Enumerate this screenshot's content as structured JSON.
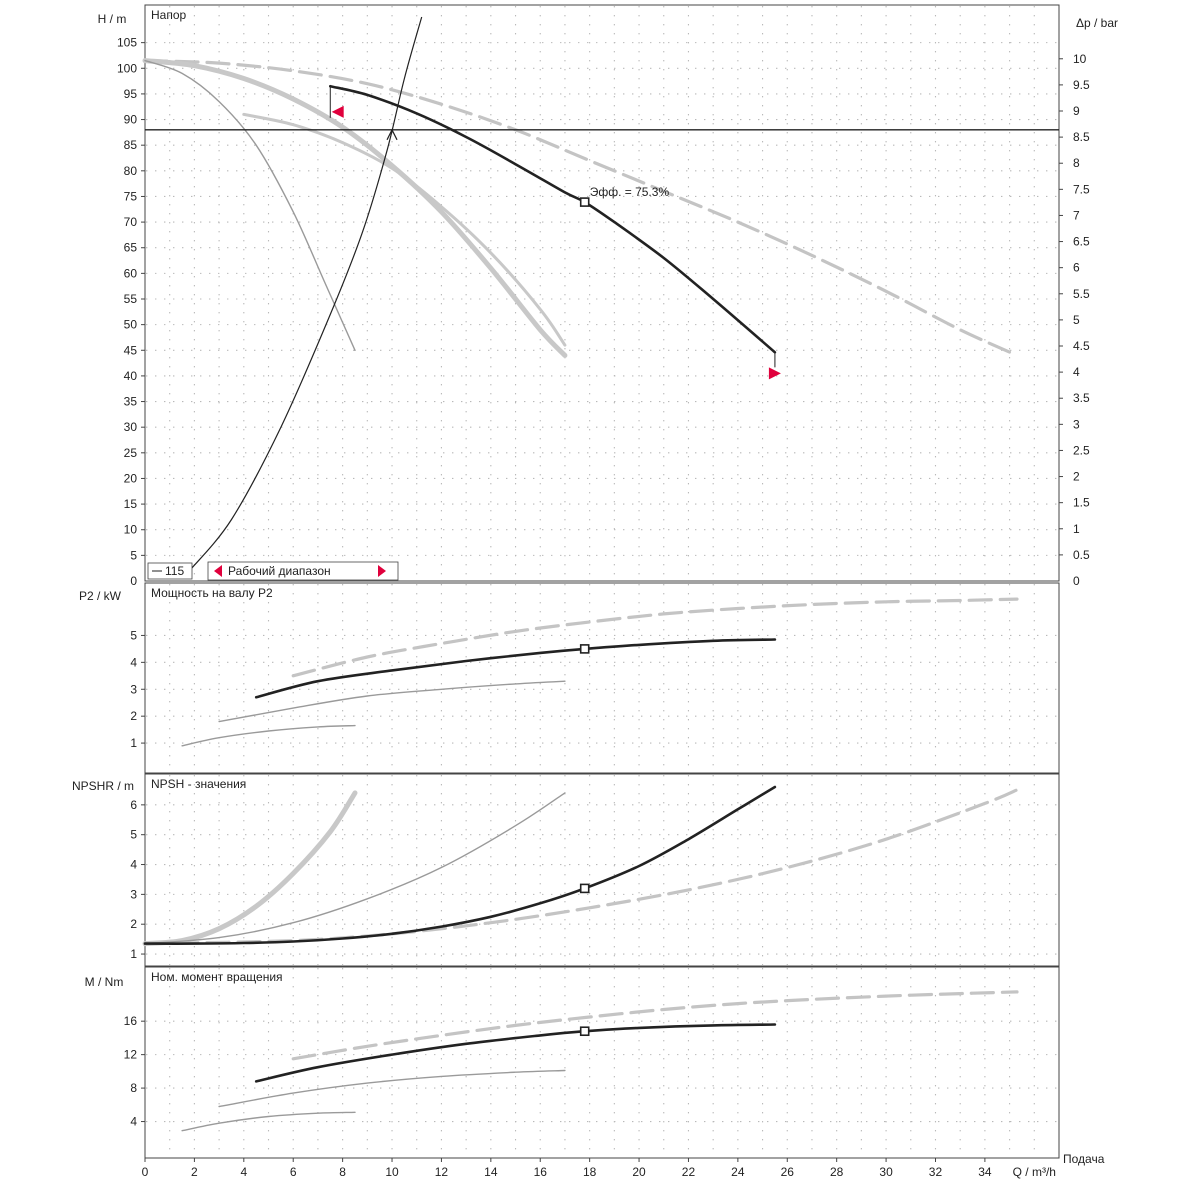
{
  "chart_data": [
    {
      "id": "head",
      "type": "line",
      "title": "Напор",
      "ylabel": "H / m",
      "y2label": "Δp / bar",
      "xlim": [
        0,
        37
      ],
      "ylim": [
        0,
        110
      ],
      "y2lim": [
        0,
        10.8
      ],
      "grid": true,
      "yticks": [
        "5",
        "10",
        "15",
        "20",
        "25",
        "30",
        "35",
        "40",
        "45",
        "50",
        "55",
        "60",
        "65",
        "70",
        "75",
        "80",
        "85",
        "90",
        "95",
        "100",
        "105"
      ],
      "y2ticks": [
        "0.5",
        "1",
        "1.5",
        "2",
        "2.5",
        "3",
        "3.5",
        "4",
        "4.5",
        "5",
        "5.5",
        "6",
        "6.5",
        "7",
        "7.5",
        "8",
        "8.5",
        "9",
        "9.5",
        "10"
      ],
      "yzero": "0",
      "y2zero": "0",
      "reference_line_y": 88,
      "legend": {
        "series_label": "115",
        "range_label": "Рабочий диапазон"
      },
      "annotation": {
        "text": "Эфф. = 75.3%",
        "x": 17.8,
        "y": 73.9
      },
      "duty_point": {
        "x": 17.8,
        "y": 73.9
      },
      "range_markers": [
        {
          "x": 7.8,
          "y": 91.5,
          "dir": "left"
        },
        {
          "x": 25.5,
          "y": 40.5,
          "dir": "right"
        }
      ],
      "system_curve": {
        "x": [
          1.8,
          3.5,
          5.5,
          7.5,
          8.8,
          9.8,
          10.5,
          11.2
        ],
        "y": [
          2,
          12,
          30,
          52,
          68,
          84,
          98,
          110
        ]
      },
      "series": [
        {
          "name": "main",
          "emphasis": "main",
          "x": [
            7.5,
            9,
            11,
            13,
            15,
            17,
            17.8,
            19,
            21,
            23,
            25.5
          ],
          "y": [
            96.5,
            94.8,
            91.2,
            86.6,
            81.3,
            75.8,
            73.9,
            70,
            63,
            55,
            44.6
          ]
        },
        {
          "name": "upper",
          "emphasis": "dashed",
          "x": [
            0,
            3,
            6,
            9,
            12,
            15,
            18,
            21,
            24,
            27,
            30,
            33,
            35.3
          ],
          "y": [
            101.5,
            101,
            99.5,
            97,
            93,
            88,
            82,
            76,
            70,
            63.5,
            56.5,
            49,
            44
          ]
        },
        {
          "name": "mid",
          "emphasis": "thick-light",
          "x": [
            0,
            2,
            4,
            6,
            8,
            10,
            12,
            14,
            16,
            17
          ],
          "y": [
            101.5,
            100.5,
            98,
            94,
            88.5,
            81,
            72,
            61,
            49,
            44
          ]
        },
        {
          "name": "low",
          "emphasis": "thin-light",
          "x": [
            0,
            1.5,
            3,
            4.5,
            6,
            7.3,
            8.5
          ],
          "y": [
            101.5,
            99,
            93.5,
            85,
            72,
            58,
            45
          ]
        },
        {
          "name": "lower-band",
          "emphasis": "light",
          "x": [
            4,
            6,
            8,
            10,
            12,
            14,
            16,
            17
          ],
          "y": [
            91,
            89,
            85.5,
            80.5,
            73,
            64,
            53,
            46
          ]
        }
      ]
    },
    {
      "id": "power",
      "type": "line",
      "title": "Мощность на валу P2",
      "ylabel": "P2 / kW",
      "xlim": [
        0,
        37
      ],
      "ylim": [
        0,
        6.8
      ],
      "grid": true,
      "yticks": [
        "1",
        "2",
        "3",
        "4",
        "5"
      ],
      "duty_point": {
        "x": 17.8,
        "y": 4.5
      },
      "series": [
        {
          "name": "main",
          "emphasis": "main",
          "x": [
            4.5,
            7,
            10,
            13,
            16,
            17.8,
            20,
            23,
            25.5
          ],
          "y": [
            2.7,
            3.3,
            3.7,
            4.05,
            4.35,
            4.5,
            4.65,
            4.8,
            4.85
          ]
        },
        {
          "name": "upper",
          "emphasis": "dashed",
          "x": [
            6,
            9,
            12,
            15,
            18,
            21,
            24,
            27,
            30,
            33,
            35.3
          ],
          "y": [
            3.5,
            4.2,
            4.7,
            5.15,
            5.5,
            5.8,
            6.0,
            6.15,
            6.25,
            6.3,
            6.35
          ]
        },
        {
          "name": "mid",
          "emphasis": "thin-light",
          "x": [
            3,
            6,
            9,
            12,
            15,
            17
          ],
          "y": [
            1.8,
            2.3,
            2.75,
            3.0,
            3.2,
            3.3
          ]
        },
        {
          "name": "low",
          "emphasis": "thin-light",
          "x": [
            1.5,
            3,
            5,
            7,
            8.5
          ],
          "y": [
            0.9,
            1.2,
            1.45,
            1.6,
            1.65
          ]
        }
      ]
    },
    {
      "id": "npsh",
      "type": "line",
      "title": "NPSH - значения",
      "ylabel": "NPSHR / m",
      "xlim": [
        0,
        37
      ],
      "ylim": [
        0.7,
        6.9
      ],
      "grid": true,
      "yticks": [
        "1",
        "2",
        "3",
        "4",
        "5",
        "6"
      ],
      "duty_point": {
        "x": 17.8,
        "y": 3.2
      },
      "series": [
        {
          "name": "main",
          "emphasis": "main",
          "x": [
            0,
            2,
            4,
            6,
            8,
            10,
            12,
            14,
            16,
            17.8,
            20,
            22,
            24,
            25.5
          ],
          "y": [
            1.35,
            1.35,
            1.37,
            1.42,
            1.52,
            1.68,
            1.92,
            2.25,
            2.7,
            3.2,
            3.95,
            4.85,
            5.85,
            6.6
          ]
        },
        {
          "name": "steep",
          "emphasis": "thick-light",
          "x": [
            0,
            1.5,
            3,
            4.5,
            6,
            7.5,
            8.5
          ],
          "y": [
            1.35,
            1.45,
            1.85,
            2.6,
            3.7,
            5.1,
            6.4
          ]
        },
        {
          "name": "mid",
          "emphasis": "thin-light",
          "x": [
            0,
            3,
            6,
            9,
            12,
            15,
            17
          ],
          "y": [
            1.35,
            1.55,
            2.05,
            2.85,
            3.9,
            5.3,
            6.4
          ]
        },
        {
          "name": "upper",
          "emphasis": "dashed",
          "x": [
            0,
            6,
            10,
            14,
            18,
            22,
            26,
            30,
            34,
            35.3
          ],
          "y": [
            1.35,
            1.45,
            1.68,
            2.05,
            2.55,
            3.15,
            3.9,
            4.85,
            6.05,
            6.5
          ]
        }
      ]
    },
    {
      "id": "torque",
      "type": "line",
      "title": "Ном. момент вращения",
      "ylabel": "M / Nm",
      "xlim": [
        0,
        37
      ],
      "ylim": [
        0,
        22
      ],
      "grid": true,
      "yticks": [
        "4",
        "8",
        "12",
        "16"
      ],
      "duty_point": {
        "x": 17.8,
        "y": 14.8
      },
      "series": [
        {
          "name": "main",
          "emphasis": "main",
          "x": [
            4.5,
            7,
            10,
            13,
            16,
            17.8,
            20,
            23,
            25.5
          ],
          "y": [
            8.8,
            10.5,
            12.0,
            13.3,
            14.3,
            14.8,
            15.2,
            15.5,
            15.6
          ]
        },
        {
          "name": "upper",
          "emphasis": "dashed",
          "x": [
            6,
            9,
            12,
            15,
            18,
            21,
            24,
            27,
            30,
            33,
            35.3
          ],
          "y": [
            11.5,
            13.0,
            14.3,
            15.5,
            16.5,
            17.4,
            18.1,
            18.6,
            19.0,
            19.3,
            19.5
          ]
        },
        {
          "name": "mid",
          "emphasis": "thin-light",
          "x": [
            3,
            6,
            9,
            12,
            15,
            17
          ],
          "y": [
            5.8,
            7.4,
            8.6,
            9.4,
            9.9,
            10.1
          ]
        },
        {
          "name": "low",
          "emphasis": "thin-light",
          "x": [
            1.5,
            3,
            5,
            7,
            8.5
          ],
          "y": [
            2.9,
            3.8,
            4.6,
            5.0,
            5.1
          ]
        }
      ]
    }
  ],
  "x_axis": {
    "label": "Q / m³/h",
    "caption": "Подача",
    "ticks": [
      "0",
      "2",
      "4",
      "6",
      "8",
      "10",
      "12",
      "14",
      "16",
      "18",
      "20",
      "22",
      "24",
      "26",
      "28",
      "30",
      "32",
      "34"
    ]
  },
  "colors": {
    "main": "#222222",
    "light": "#c8c8c8",
    "thin_light": "#9a9a9a",
    "dashed": "#c4c4c4",
    "marker": "#e0003c",
    "frame": "#444444"
  }
}
